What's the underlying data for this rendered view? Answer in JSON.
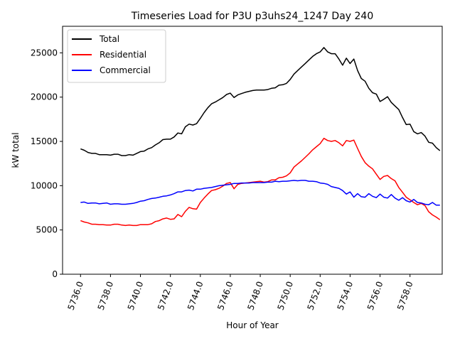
{
  "chart_data": {
    "type": "line",
    "title": "Timeseries Load for P3U p3uhs24_1247  Day 240",
    "xlabel": "Hour of Year",
    "ylabel": "kW total",
    "xlim": [
      5734.8,
      5760.15
    ],
    "ylim": [
      0,
      28000
    ],
    "x_start": 5736.0,
    "x_step": 0.25,
    "xticks": [
      5736,
      5738,
      5740,
      5742,
      5744,
      5746,
      5748,
      5750,
      5752,
      5754,
      5756,
      5758
    ],
    "xtick_labels": [
      "5736.0",
      "5738.0",
      "5740.0",
      "5742.0",
      "5744.0",
      "5746.0",
      "5748.0",
      "5750.0",
      "5752.0",
      "5754.0",
      "5756.0",
      "5758.0"
    ],
    "yticks": [
      0,
      5000,
      10000,
      15000,
      20000,
      25000
    ],
    "ytick_labels": [
      "0",
      "5000",
      "10000",
      "15000",
      "20000",
      "25000"
    ],
    "legend_position": "top-left",
    "series": [
      {
        "name": "Total",
        "color": "#000000",
        "values": [
          14150,
          14000,
          13750,
          13650,
          13650,
          13500,
          13500,
          13500,
          13450,
          13550,
          13550,
          13400,
          13400,
          13500,
          13450,
          13650,
          13850,
          13900,
          14150,
          14300,
          14600,
          14850,
          15200,
          15250,
          15250,
          15500,
          15950,
          15850,
          16650,
          16950,
          16850,
          17000,
          17600,
          18250,
          18800,
          19250,
          19450,
          19700,
          19950,
          20300,
          20450,
          19950,
          20250,
          20400,
          20550,
          20650,
          20750,
          20800,
          20800,
          20800,
          20850,
          21000,
          21050,
          21350,
          21400,
          21550,
          22000,
          22600,
          23000,
          23400,
          23800,
          24200,
          24600,
          24900,
          25100,
          25600,
          25100,
          24900,
          24900,
          24300,
          23600,
          24400,
          23800,
          24300,
          23000,
          22100,
          21800,
          21000,
          20500,
          20350,
          19500,
          19750,
          20050,
          19400,
          19000,
          18600,
          17700,
          16900,
          16950,
          16100,
          15850,
          16000,
          15600,
          14900,
          14800,
          14300,
          13950
        ]
      },
      {
        "name": "Residential",
        "color": "#ff0000",
        "values": [
          6050,
          5900,
          5800,
          5650,
          5650,
          5600,
          5600,
          5550,
          5550,
          5650,
          5650,
          5550,
          5500,
          5550,
          5500,
          5500,
          5600,
          5600,
          5600,
          5700,
          5950,
          6050,
          6250,
          6350,
          6200,
          6250,
          6750,
          6500,
          7100,
          7550,
          7400,
          7350,
          8100,
          8600,
          9050,
          9450,
          9550,
          9700,
          9950,
          10250,
          10350,
          9650,
          10150,
          10250,
          10300,
          10350,
          10400,
          10450,
          10500,
          10400,
          10450,
          10650,
          10650,
          10900,
          10950,
          11100,
          11450,
          12100,
          12450,
          12800,
          13200,
          13600,
          14050,
          14400,
          14750,
          15350,
          15100,
          15000,
          15100,
          14850,
          14500,
          15100,
          15000,
          15150,
          14200,
          13300,
          12600,
          12200,
          11900,
          11300,
          10700,
          11050,
          11150,
          10800,
          10550,
          9800,
          9250,
          8700,
          8400,
          8100,
          7850,
          8000,
          7750,
          7050,
          6700,
          6450,
          6150
        ]
      },
      {
        "name": "Commercial",
        "color": "#0000ff",
        "values": [
          8100,
          8150,
          8000,
          8050,
          8050,
          7950,
          8000,
          8050,
          7900,
          7950,
          7950,
          7900,
          7900,
          7950,
          8000,
          8100,
          8250,
          8300,
          8450,
          8550,
          8600,
          8700,
          8800,
          8850,
          8950,
          9100,
          9300,
          9300,
          9450,
          9500,
          9400,
          9600,
          9600,
          9700,
          9750,
          9800,
          9900,
          10000,
          10050,
          10100,
          10150,
          10250,
          10250,
          10300,
          10300,
          10300,
          10350,
          10350,
          10350,
          10350,
          10400,
          10400,
          10500,
          10450,
          10500,
          10500,
          10550,
          10600,
          10550,
          10600,
          10600,
          10500,
          10500,
          10450,
          10300,
          10250,
          10150,
          9900,
          9800,
          9700,
          9450,
          9050,
          9300,
          8700,
          9100,
          8750,
          8700,
          9100,
          8800,
          8650,
          9050,
          8700,
          8600,
          9000,
          8600,
          8350,
          8650,
          8300,
          8150,
          8450,
          8100,
          8050,
          7900,
          7850,
          8100,
          7800,
          7800
        ]
      }
    ]
  }
}
